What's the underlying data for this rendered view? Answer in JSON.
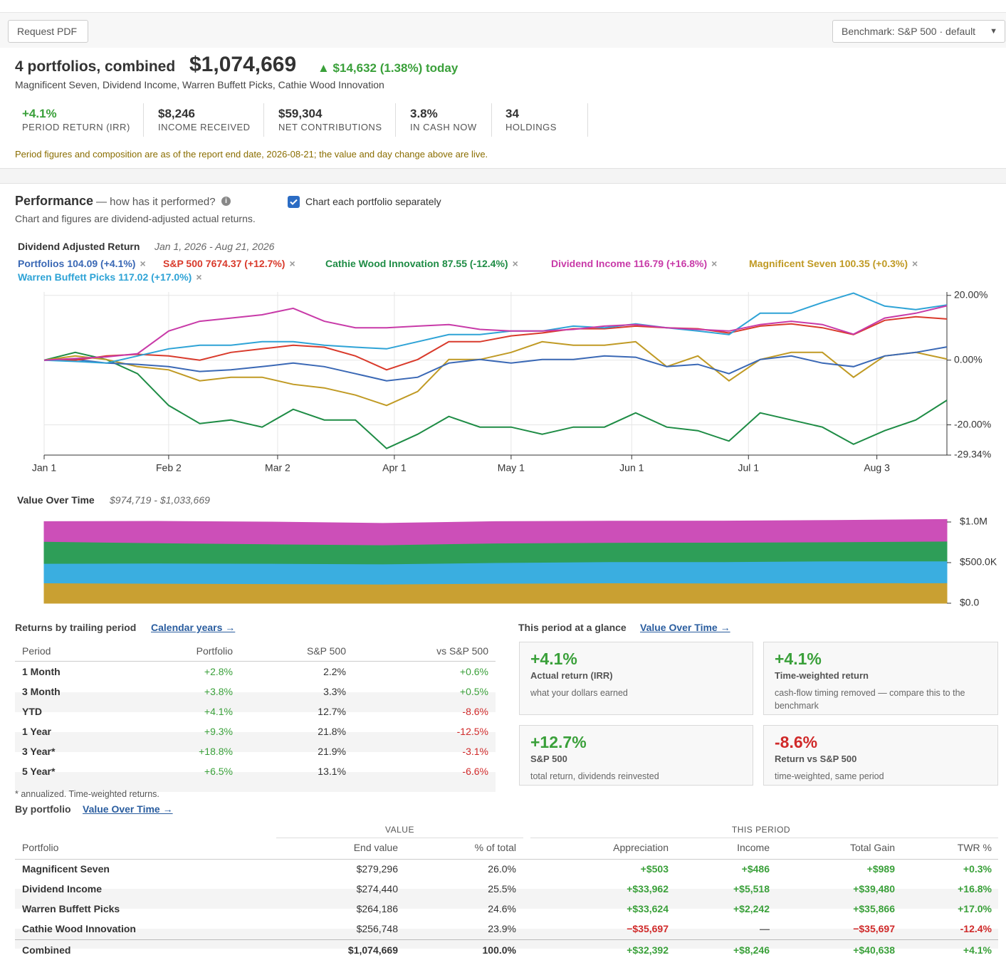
{
  "header": {
    "request_pdf": "Request PDF",
    "benchmark": "Benchmark: S&P 500 · default"
  },
  "summary": {
    "title": "4 portfolios, combined",
    "value": "$1,074,669",
    "change": "▲ $14,632 (1.38%) today",
    "portfolios": "Magnificent Seven, Dividend Income, Warren Buffett Picks, Cathie Wood Innovation",
    "stats": [
      {
        "value": "+4.1%",
        "label": "PERIOD RETURN (IRR)"
      },
      {
        "value": "$8,246",
        "label": "INCOME RECEIVED"
      },
      {
        "value": "$59,304",
        "label": "NET CONTRIBUTIONS"
      },
      {
        "value": "3.8%",
        "label": "IN CASH NOW"
      },
      {
        "value": "34",
        "label": "HOLDINGS"
      }
    ],
    "note": "Period figures and composition are as of the report end date, 2026-08-21; the value and day change above are live."
  },
  "performance": {
    "title": "Performance",
    "subtitle": "— how has it performed?",
    "description": "Chart and figures are dividend-adjusted actual returns.",
    "checkbox": "Chart each portfolio separately",
    "checked": true
  },
  "chart_data": [
    {
      "type": "line",
      "title": "Dividend Adjusted Return",
      "subtitle": "Jan 1, 2026 - Aug 21, 2026",
      "x": [
        "2026-01-01",
        "2026-01-09",
        "2026-01-17",
        "2026-01-25",
        "2026-02-02",
        "2026-02-10",
        "2026-02-18",
        "2026-02-26",
        "2026-03-06",
        "2026-03-14",
        "2026-03-22",
        "2026-03-30",
        "2026-04-07",
        "2026-04-15",
        "2026-04-23",
        "2026-05-01",
        "2026-05-09",
        "2026-05-17",
        "2026-05-25",
        "2026-06-02",
        "2026-06-10",
        "2026-06-18",
        "2026-06-26",
        "2026-07-04",
        "2026-07-12",
        "2026-07-20",
        "2026-07-28",
        "2026-08-05",
        "2026-08-13",
        "2026-08-21"
      ],
      "xlim": [
        "2026-01-01",
        "2026-08-21"
      ],
      "xticks": [
        {
          "value": "2026-01-01",
          "label": "Jan 1"
        },
        {
          "value": "2026-02-02",
          "label": "Feb 2"
        },
        {
          "value": "2026-03-02",
          "label": "Mar 2"
        },
        {
          "value": "2026-04-01",
          "label": "Apr 1"
        },
        {
          "value": "2026-05-01",
          "label": "May 1"
        },
        {
          "value": "2026-06-01",
          "label": "Jun 1"
        },
        {
          "value": "2026-07-01",
          "label": "Jul 1"
        },
        {
          "value": "2026-08-03",
          "label": "Aug 3"
        }
      ],
      "ylim": [
        -29.34,
        21.05
      ],
      "yticks": [
        {
          "value": 20,
          "label": "20.00%"
        },
        {
          "value": 0,
          "label": "0.00%"
        },
        {
          "value": -20,
          "label": "-20.00%"
        },
        {
          "value": -29.34,
          "label": "-29.34%"
        }
      ],
      "grid": true,
      "series": [
        {
          "name": "Portfolios",
          "legend_value": "104.09 (+4.1%)",
          "color": "#3a68b5",
          "values": [
            0,
            0.2,
            -0.9,
            -1.3,
            -2,
            -3.5,
            -3,
            -2,
            -0.9,
            -2,
            -4.2,
            -6.4,
            -5.3,
            -0.9,
            0.2,
            -0.9,
            0.2,
            0.2,
            1.3,
            0.9,
            -2,
            -1.3,
            -4.2,
            0.2,
            1.3,
            -0.9,
            -2,
            1.3,
            2.4,
            4.09
          ]
        },
        {
          "name": "S&P 500",
          "legend_value": "7674.37 (+12.7%)",
          "color": "#d93a2b",
          "values": [
            0,
            0,
            1.3,
            1.8,
            1.3,
            0,
            2.4,
            3.5,
            4.6,
            4,
            1.3,
            -3,
            0.2,
            5.7,
            5.7,
            7.5,
            8.4,
            9.7,
            9.7,
            10.5,
            10,
            9.7,
            8.4,
            10.5,
            11.2,
            10,
            7.9,
            12.3,
            13.4,
            12.7
          ]
        },
        {
          "name": "Cathie Wood Innovation",
          "legend_value": "87.55 (-12.4%)",
          "color": "#1e8c45",
          "values": [
            0,
            2.4,
            0.2,
            -4.2,
            -14,
            -19.6,
            -18.5,
            -20.7,
            -15.2,
            -18.5,
            -18.5,
            -27.3,
            -22.9,
            -17.4,
            -20.7,
            -20.7,
            -22.9,
            -20.7,
            -20.7,
            -16.3,
            -20.7,
            -21.8,
            -25,
            -16.3,
            -18.5,
            -20.7,
            -26,
            -21.8,
            -18.5,
            -12.4
          ]
        },
        {
          "name": "Dividend Income",
          "legend_value": "116.79 (+16.8%)",
          "color": "#c83aa8",
          "values": [
            0,
            0.5,
            1,
            2,
            9,
            12,
            13,
            14,
            16,
            12,
            10,
            10,
            10.5,
            11,
            9.5,
            9,
            9,
            9.5,
            10.5,
            11,
            10,
            9.5,
            9,
            11,
            12,
            11,
            8,
            13,
            14.5,
            16.79
          ]
        },
        {
          "name": "Magnificent Seven",
          "legend_value": "100.35 (+0.3%)",
          "color": "#c09a24",
          "values": [
            0,
            1.3,
            0.2,
            -2,
            -3,
            -6.4,
            -5.3,
            -5.3,
            -7.5,
            -8.6,
            -10.8,
            -14,
            -9.7,
            0.2,
            0.2,
            2.4,
            5.7,
            4.6,
            4.6,
            5.7,
            -2,
            1.3,
            -6.4,
            0.2,
            2.4,
            2.4,
            -5.3,
            1.3,
            2.4,
            0.35
          ]
        },
        {
          "name": "Warren Buffett Picks",
          "legend_value": "117.02 (+17.0%)",
          "color": "#2ea3d6",
          "values": [
            0,
            -0.4,
            -0.9,
            1.3,
            3.5,
            4.6,
            4.6,
            5.7,
            5.7,
            4.6,
            4,
            3.5,
            5.7,
            7.9,
            7.9,
            9,
            9,
            10.5,
            10,
            11.2,
            10,
            9,
            7.9,
            14.5,
            14.5,
            17.8,
            20.7,
            16.7,
            15.6,
            17.02
          ]
        }
      ]
    },
    {
      "type": "area",
      "stacked": true,
      "title": "Value Over Time",
      "subtitle": "$974,719 - $1,033,669",
      "x": [
        "2026-01-01",
        "2026-01-30",
        "2026-02-28",
        "2026-03-29",
        "2026-04-27",
        "2026-05-26",
        "2026-06-24",
        "2026-07-23",
        "2026-08-21"
      ],
      "xlim": [
        "2026-01-01",
        "2026-08-21"
      ],
      "ylim": [
        0,
        1040000
      ],
      "yticks": [
        {
          "value": 0,
          "label": "$0.0"
        },
        {
          "value": 500000,
          "label": "$500.0K"
        },
        {
          "value": 1000000,
          "label": "$1.0M"
        }
      ],
      "series": [
        {
          "name": "Magnificent Seven",
          "color": "#c9a032",
          "values": [
            250000,
            245000,
            240000,
            235000,
            245000,
            250000,
            248000,
            250000,
            251000
          ]
        },
        {
          "name": "Warren Buffett Picks",
          "color": "#3aaee0",
          "values": [
            240000,
            248000,
            250000,
            248000,
            255000,
            260000,
            262000,
            270000,
            268000
          ]
        },
        {
          "name": "Cathie Wood Innovation",
          "color": "#2e9e58",
          "values": [
            270000,
            250000,
            240000,
            235000,
            240000,
            238000,
            240000,
            235000,
            245000
          ]
        },
        {
          "name": "Dividend Income",
          "color": "#cc4fb8",
          "values": [
            245000,
            265000,
            270000,
            265000,
            265000,
            262000,
            262000,
            265000,
            267000
          ]
        }
      ]
    }
  ],
  "returns": {
    "title": "Returns by trailing period",
    "link": "Calendar years →",
    "columns": [
      "Period",
      "Portfolio",
      "S&P 500",
      "vs S&P 500"
    ],
    "rows": [
      [
        "1 Month",
        "+2.8%",
        "2.2%",
        "+0.6%"
      ],
      [
        "3 Month",
        "+3.8%",
        "3.3%",
        "+0.5%"
      ],
      [
        "YTD",
        "+4.1%",
        "12.7%",
        "-8.6%"
      ],
      [
        "1 Year",
        "+9.3%",
        "21.8%",
        "-12.5%"
      ],
      [
        "3 Year*",
        "+18.8%",
        "21.9%",
        "-3.1%"
      ],
      [
        "5 Year*",
        "+6.5%",
        "13.1%",
        "-6.6%"
      ]
    ],
    "footnote": "* annualized. Time-weighted returns."
  },
  "glance": {
    "title": "This period at a glance",
    "link": "Value Over Time →",
    "cards": [
      {
        "value": "+4.1%",
        "title": "Actual return (IRR)",
        "description": "what your dollars earned"
      },
      {
        "value": "+4.1%",
        "title": "Time-weighted return",
        "description": "cash-flow timing removed — compare this to the benchmark"
      },
      {
        "value": "+12.7%",
        "title": "S&P 500",
        "description": "total return, dividends reinvested"
      },
      {
        "value": "-8.6%",
        "title": "Return vs S&P 500",
        "description": "time-weighted, same period"
      }
    ]
  },
  "by_portfolio": {
    "title": "By portfolio",
    "link": "Value Over Time →",
    "groups": [
      "VALUE",
      "THIS PERIOD"
    ],
    "columns": [
      "Portfolio",
      "End value",
      "% of total",
      "Appreciation",
      "Income",
      "Total Gain",
      "TWR %"
    ],
    "rows": [
      [
        "Magnificent Seven",
        "$279,296",
        "26.0%",
        "+$503",
        "+$486",
        "+$989",
        "+0.3%"
      ],
      [
        "Dividend Income",
        "$274,440",
        "25.5%",
        "+$33,962",
        "+$5,518",
        "+$39,480",
        "+16.8%"
      ],
      [
        "Warren Buffett Picks",
        "$264,186",
        "24.6%",
        "+$33,624",
        "+$2,242",
        "+$35,866",
        "+17.0%"
      ],
      [
        "Cathie Wood Innovation",
        "$256,748",
        "23.9%",
        "−$35,697",
        "—",
        "−$35,697",
        "-12.4%"
      ]
    ],
    "total": [
      "Combined",
      "$1,074,669",
      "100.0%",
      "+$32,392",
      "+$8,246",
      "+$40,638",
      "+4.1%"
    ]
  }
}
